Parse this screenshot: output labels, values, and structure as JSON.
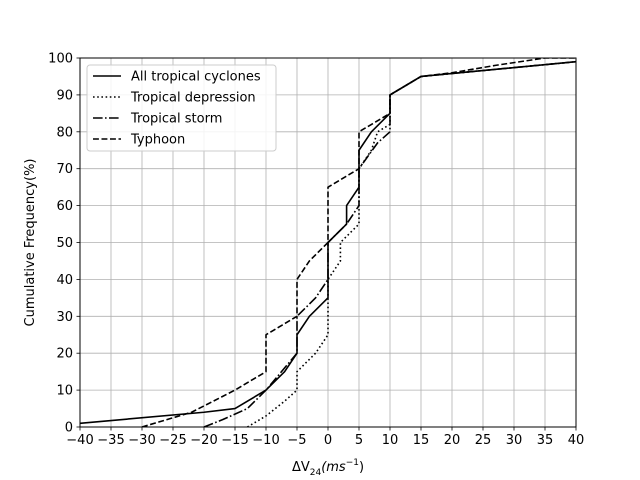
{
  "chart_data": {
    "type": "line",
    "title": "",
    "xlabel_main": "ΔV",
    "xlabel_sub": "24",
    "xlabel_unit": "(ms",
    "xlabel_exp": "−1",
    "xlabel_close": ")",
    "ylabel": "Cumulative Frequency(%)",
    "xlim": [
      -40,
      40
    ],
    "ylim": [
      0,
      100
    ],
    "xticks": [
      -40,
      -35,
      -30,
      -25,
      -20,
      -15,
      -10,
      -5,
      0,
      5,
      10,
      15,
      20,
      25,
      30,
      35,
      40
    ],
    "yticks": [
      0,
      10,
      20,
      30,
      40,
      50,
      60,
      70,
      80,
      90,
      100
    ],
    "xtick_labels": [
      "−40",
      "−35",
      "−30",
      "−25",
      "−20",
      "−15",
      "−10",
      "−5",
      "0",
      "5",
      "10",
      "15",
      "20",
      "25",
      "30",
      "35",
      "40"
    ],
    "ytick_labels": [
      "0",
      "10",
      "20",
      "30",
      "40",
      "50",
      "60",
      "70",
      "80",
      "90",
      "100"
    ],
    "grid": true,
    "legend_position": "top-left",
    "series": [
      {
        "name": "All tropical cyclones",
        "style": "solid",
        "color": "#000000",
        "points": [
          [
            -40,
            1
          ],
          [
            -20,
            4
          ],
          [
            -15,
            5
          ],
          [
            -10,
            10
          ],
          [
            -7,
            15
          ],
          [
            -5,
            20
          ],
          [
            -5,
            25
          ],
          [
            -3,
            30
          ],
          [
            0,
            35
          ],
          [
            0,
            50
          ],
          [
            3,
            55
          ],
          [
            3,
            60
          ],
          [
            5,
            65
          ],
          [
            5,
            75
          ],
          [
            7,
            80
          ],
          [
            10,
            85
          ],
          [
            10,
            90
          ],
          [
            15,
            95
          ],
          [
            40,
            99
          ]
        ]
      },
      {
        "name": "Tropical depression",
        "style": "dotted",
        "color": "#000000",
        "points": [
          [
            -13,
            0
          ],
          [
            -10,
            3
          ],
          [
            -7,
            7
          ],
          [
            -5,
            10
          ],
          [
            -5,
            15
          ],
          [
            -2,
            20
          ],
          [
            0,
            25
          ],
          [
            0,
            40
          ],
          [
            2,
            45
          ],
          [
            2,
            50
          ],
          [
            5,
            55
          ],
          [
            5,
            70
          ],
          [
            7,
            75
          ],
          [
            8,
            80
          ],
          [
            10,
            82
          ],
          [
            10,
            90
          ],
          [
            15,
            95
          ],
          [
            40,
            99
          ]
        ]
      },
      {
        "name": "Tropical storm",
        "style": "dashdot",
        "color": "#000000",
        "points": [
          [
            -20,
            0
          ],
          [
            -17,
            2
          ],
          [
            -13,
            5
          ],
          [
            -10,
            10
          ],
          [
            -5,
            20
          ],
          [
            -5,
            30
          ],
          [
            -2,
            35
          ],
          [
            0,
            40
          ],
          [
            0,
            50
          ],
          [
            3,
            55
          ],
          [
            5,
            60
          ],
          [
            5,
            70
          ],
          [
            8,
            77
          ],
          [
            10,
            80
          ],
          [
            10,
            90
          ],
          [
            15,
            95
          ],
          [
            40,
            99
          ]
        ]
      },
      {
        "name": "Typhoon",
        "style": "dashed",
        "color": "#000000",
        "points": [
          [
            -30,
            0
          ],
          [
            -22,
            4
          ],
          [
            -15,
            10
          ],
          [
            -10,
            15
          ],
          [
            -10,
            25
          ],
          [
            -5,
            30
          ],
          [
            -5,
            40
          ],
          [
            -3,
            45
          ],
          [
            0,
            50
          ],
          [
            0,
            65
          ],
          [
            5,
            70
          ],
          [
            5,
            80
          ],
          [
            10,
            85
          ],
          [
            10,
            90
          ],
          [
            15,
            95
          ],
          [
            20,
            96
          ],
          [
            27,
            98
          ],
          [
            35,
            100
          ],
          [
            40,
            100
          ]
        ]
      }
    ]
  }
}
